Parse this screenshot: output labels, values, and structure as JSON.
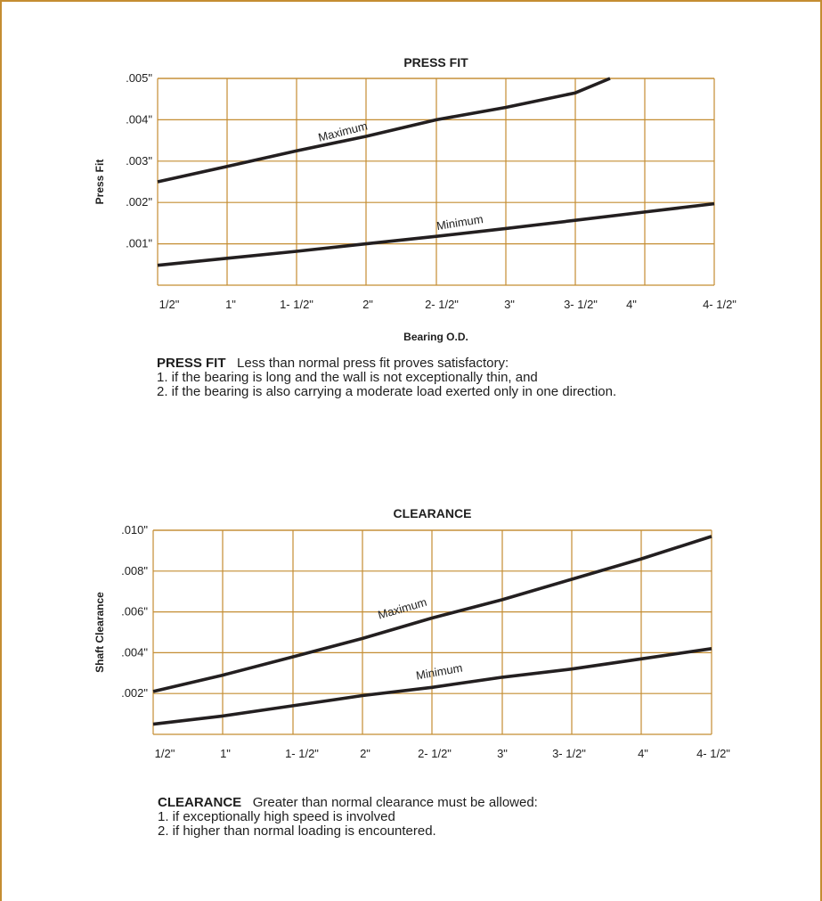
{
  "colors": {
    "border": "#c48d32",
    "grid": "#c48d32",
    "line": "#231f20",
    "text": "#1e1e1e"
  },
  "chart_data": [
    {
      "type": "line",
      "title": "PRESS FIT",
      "xlabel": "Bearing O.D.",
      "ylabel": "Press Fit",
      "categories": [
        "1/2\"",
        "1\"",
        "1- 1/2\"",
        "2\"",
        "2- 1/2\"",
        "3\"",
        "3- 1/2\"",
        "4\"",
        "4- 1/2\""
      ],
      "ytick_labels": [
        ".001\"",
        ".002\"",
        ".003\"",
        ".004\"",
        ".005\""
      ],
      "ytick_values": [
        0.001,
        0.002,
        0.003,
        0.004,
        0.005
      ],
      "ylim": [
        0,
        0.005
      ],
      "xlim": [
        0.5,
        4.5
      ],
      "grid": true,
      "series": [
        {
          "name": "Maximum",
          "x": [
            0.5,
            1.0,
            1.5,
            2.0,
            2.5,
            3.0,
            3.5,
            3.75
          ],
          "y": [
            0.0025,
            0.00287,
            0.00325,
            0.0036,
            0.004,
            0.0043,
            0.00465,
            0.005
          ]
        },
        {
          "name": "Minimum",
          "x": [
            0.5,
            1.0,
            1.5,
            2.0,
            2.5,
            3.0,
            3.5,
            4.0,
            4.5
          ],
          "y": [
            0.00048,
            0.00065,
            0.00082,
            0.001,
            0.00118,
            0.00137,
            0.00157,
            0.00177,
            0.00197
          ]
        }
      ]
    },
    {
      "type": "line",
      "title": "CLEARANCE",
      "xlabel": "",
      "ylabel": "Shaft Clearance",
      "categories": [
        "1/2\"",
        "1\"",
        "1- 1/2\"",
        "2\"",
        "2- 1/2\"",
        "3\"",
        "3- 1/2\"",
        "4\"",
        "4- 1/2\""
      ],
      "ytick_labels": [
        ".002\"",
        ".004\"",
        ".006\"",
        ".008\"",
        ".010\""
      ],
      "ytick_values": [
        0.002,
        0.004,
        0.006,
        0.008,
        0.01
      ],
      "ylim": [
        0,
        0.01
      ],
      "xlim": [
        0.5,
        4.5
      ],
      "grid": true,
      "series": [
        {
          "name": "Maximum",
          "x": [
            0.5,
            1.0,
            1.5,
            2.0,
            2.5,
            3.0,
            3.5,
            4.0,
            4.5
          ],
          "y": [
            0.0021,
            0.0029,
            0.0038,
            0.0047,
            0.0057,
            0.0066,
            0.0076,
            0.0086,
            0.0097
          ]
        },
        {
          "name": "Minimum",
          "x": [
            0.5,
            1.0,
            1.5,
            2.0,
            2.5,
            3.0,
            3.5,
            4.0,
            4.5
          ],
          "y": [
            0.0005,
            0.0009,
            0.0014,
            0.0019,
            0.0023,
            0.0028,
            0.0032,
            0.0037,
            0.0042
          ]
        }
      ]
    }
  ],
  "notes": [
    {
      "lead": "PRESS FIT",
      "text": "Less than normal press fit proves satisfactory:",
      "lines": [
        "1. if the bearing is long and the wall is not exceptionally thin, and",
        "2. if the bearing is also carrying a moderate load exerted only in one direction."
      ]
    },
    {
      "lead": "CLEARANCE",
      "text": "Greater than normal clearance must be allowed:",
      "lines": [
        "1. if exceptionally high speed is involved",
        "2. if higher than normal loading is encountered."
      ]
    }
  ]
}
